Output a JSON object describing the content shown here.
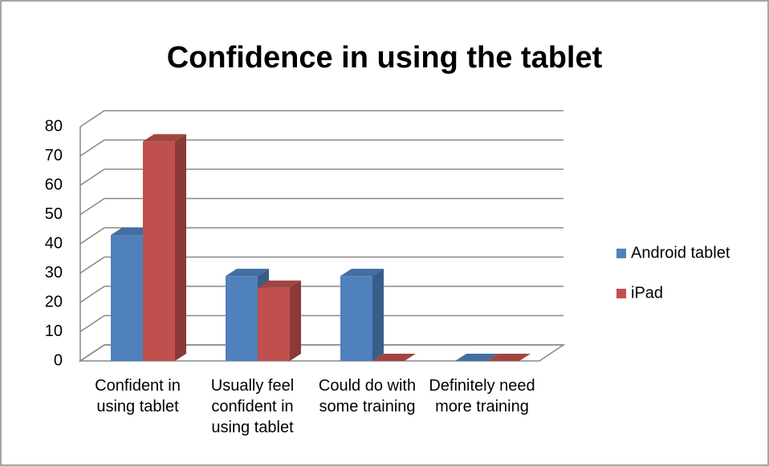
{
  "chart_data": {
    "type": "bar3d",
    "title": "Confidence in using the tablet",
    "categories": [
      "Confident in using tablet",
      "Usually feel confident in using tablet",
      "Could do with some training",
      "Definitely need more training"
    ],
    "series": [
      {
        "name": "Android tablet",
        "color": "#4f81bd",
        "values": [
          43,
          29,
          29,
          0
        ]
      },
      {
        "name": "iPad",
        "color": "#c0504d",
        "values": [
          75,
          25,
          0,
          0
        ]
      }
    ],
    "ylim": [
      0,
      80
    ],
    "yticks": [
      0,
      10,
      20,
      30,
      40,
      50,
      60,
      70,
      80
    ],
    "grid": true,
    "legend": "right"
  }
}
